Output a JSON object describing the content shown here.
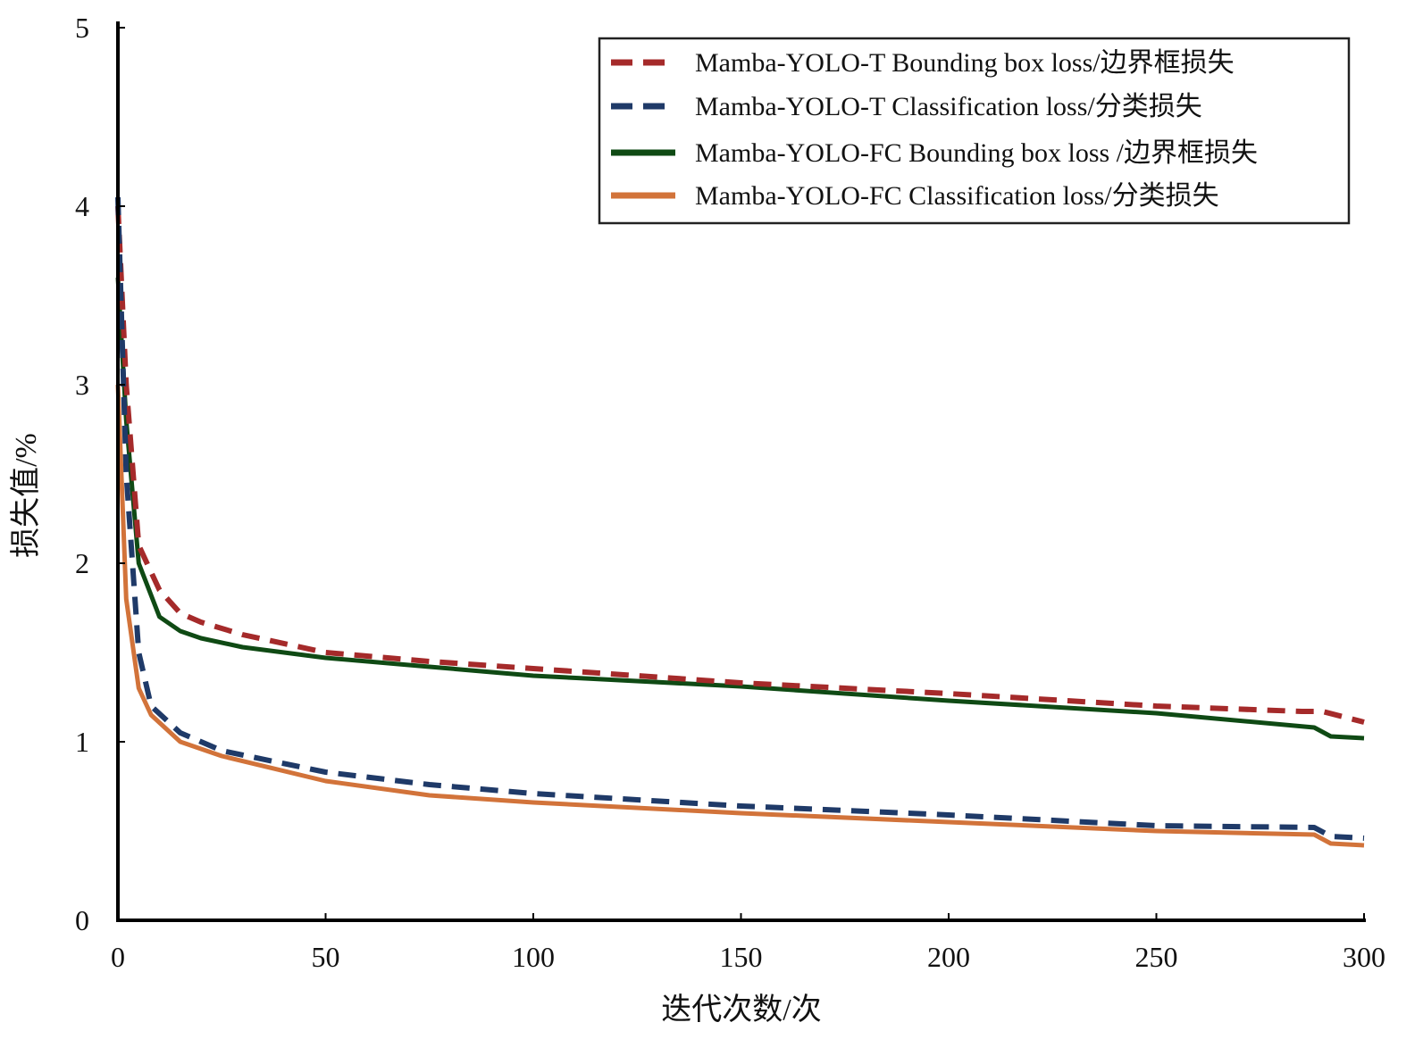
{
  "chart_data": {
    "type": "line",
    "title": "",
    "xlabel": "迭代次数/次",
    "ylabel": "损失值/%",
    "xlim": [
      0,
      300
    ],
    "ylim": [
      0,
      5
    ],
    "xticks": [
      "0",
      "50",
      "100",
      "150",
      "200",
      "250",
      "300"
    ],
    "yticks": [
      "0",
      "1",
      "2",
      "3",
      "4",
      "5"
    ],
    "grid": false,
    "legend_position": "top-right",
    "series": [
      {
        "name": "Mamba-YOLO-T Bounding box loss/边界框损失",
        "color": "#a52a2a",
        "dash": true,
        "x": [
          0,
          2,
          5,
          10,
          15,
          20,
          30,
          50,
          75,
          100,
          150,
          200,
          250,
          285,
          290,
          300
        ],
        "y": [
          4.0,
          3.0,
          2.1,
          1.85,
          1.72,
          1.67,
          1.6,
          1.5,
          1.45,
          1.41,
          1.33,
          1.27,
          1.2,
          1.17,
          1.17,
          1.11
        ]
      },
      {
        "name": "Mamba-YOLO-T Classification loss/分类损失",
        "color": "#1f3a68",
        "dash": true,
        "x": [
          0,
          2,
          5,
          8,
          15,
          25,
          50,
          75,
          100,
          150,
          200,
          250,
          288,
          292,
          300
        ],
        "y": [
          4.05,
          2.5,
          1.5,
          1.2,
          1.05,
          0.95,
          0.83,
          0.76,
          0.71,
          0.64,
          0.59,
          0.53,
          0.52,
          0.47,
          0.46
        ]
      },
      {
        "name": "Mamba-YOLO-FC Bounding box loss /边界框损失",
        "color": "#0f4a14",
        "dash": false,
        "x": [
          0,
          2,
          5,
          10,
          15,
          20,
          30,
          50,
          75,
          100,
          150,
          200,
          250,
          288,
          292,
          300
        ],
        "y": [
          3.6,
          2.8,
          2.0,
          1.7,
          1.62,
          1.58,
          1.53,
          1.47,
          1.42,
          1.37,
          1.31,
          1.23,
          1.16,
          1.08,
          1.03,
          1.02
        ]
      },
      {
        "name": "Mamba-YOLO-FC Classification loss/分类损失",
        "color": "#d2733a",
        "dash": false,
        "x": [
          0,
          2,
          5,
          8,
          15,
          25,
          50,
          75,
          100,
          150,
          200,
          250,
          288,
          292,
          300
        ],
        "y": [
          3.0,
          1.8,
          1.3,
          1.15,
          1.0,
          0.92,
          0.78,
          0.7,
          0.66,
          0.6,
          0.55,
          0.5,
          0.48,
          0.43,
          0.42
        ]
      }
    ]
  }
}
